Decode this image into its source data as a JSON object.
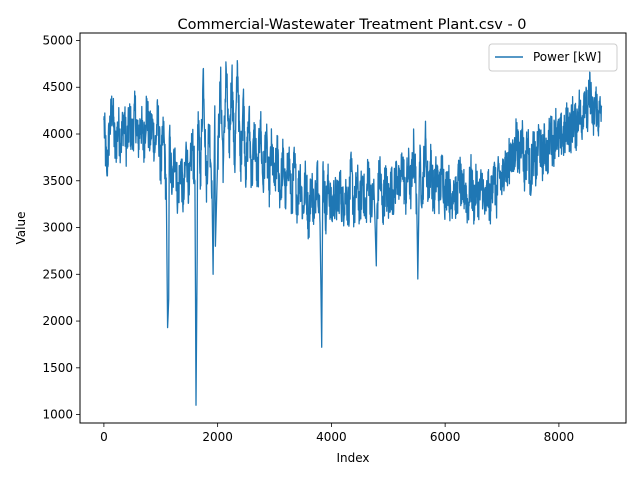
{
  "chart_data": {
    "type": "line",
    "title": "Commercial-Wastewater Treatment Plant.csv - 0",
    "xlabel": "Index",
    "ylabel": "Value",
    "xlim": [
      -420,
      9180
    ],
    "ylim": [
      910,
      5080
    ],
    "xticks": [
      0,
      2000,
      4000,
      6000,
      8000
    ],
    "yticks": [
      1000,
      1500,
      2000,
      2500,
      3000,
      3500,
      4000,
      4500,
      5000
    ],
    "grid": false,
    "legend_position": "top-right",
    "series": [
      {
        "name": "Power [kW]",
        "color": "#1f77b4",
        "x": [
          0,
          50,
          100,
          150,
          200,
          250,
          300,
          350,
          400,
          450,
          500,
          550,
          600,
          650,
          700,
          750,
          800,
          850,
          900,
          950,
          1000,
          1050,
          1100,
          1150,
          1200,
          1250,
          1300,
          1350,
          1400,
          1450,
          1500,
          1550,
          1600,
          1650,
          1700,
          1750,
          1800,
          1850,
          1900,
          1950,
          2000,
          2050,
          2100,
          2150,
          2200,
          2250,
          2300,
          2350,
          2400,
          2450,
          2500,
          2550,
          2600,
          2650,
          2700,
          2750,
          2800,
          2850,
          2900,
          2950,
          3000,
          3050,
          3100,
          3150,
          3200,
          3250,
          3300,
          3350,
          3400,
          3450,
          3500,
          3550,
          3600,
          3650,
          3700,
          3750,
          3800,
          3850,
          3900,
          3950,
          4000,
          4050,
          4100,
          4150,
          4200,
          4250,
          4300,
          4350,
          4400,
          4450,
          4500,
          4550,
          4600,
          4650,
          4700,
          4750,
          4800,
          4850,
          4900,
          4950,
          5000,
          5050,
          5100,
          5150,
          5200,
          5250,
          5300,
          5350,
          5400,
          5450,
          5500,
          5550,
          5600,
          5650,
          5700,
          5750,
          5800,
          5850,
          5900,
          5950,
          6000,
          6050,
          6100,
          6150,
          6200,
          6250,
          6300,
          6350,
          6400,
          6450,
          6500,
          6550,
          6600,
          6650,
          6700,
          6750,
          6800,
          6850,
          6900,
          6950,
          7000,
          7050,
          7100,
          7150,
          7200,
          7250,
          7300,
          7350,
          7400,
          7450,
          7500,
          7550,
          7600,
          7650,
          7700,
          7750,
          7800,
          7850,
          7900,
          7950,
          8000,
          8050,
          8100,
          8150,
          8200,
          8250,
          8300,
          8350,
          8400,
          8450,
          8500,
          8550,
          8600,
          8650,
          8700,
          8750
        ],
        "y": [
          4150,
          3600,
          4050,
          4300,
          3800,
          4100,
          3900,
          4200,
          3850,
          4150,
          3950,
          4250,
          3900,
          4150,
          3850,
          4300,
          3950,
          4100,
          3850,
          4200,
          3600,
          4050,
          3300,
          3950,
          3400,
          3850,
          3300,
          3700,
          3250,
          3850,
          3350,
          3950,
          3500,
          4100,
          3600,
          4700,
          3450,
          4100,
          3500,
          4300,
          3700,
          4550,
          3650,
          4700,
          3800,
          4650,
          3650,
          4750,
          3600,
          4400,
          3550,
          4200,
          3500,
          4050,
          3450,
          4150,
          3450,
          4000,
          3400,
          3850,
          3450,
          3800,
          3350,
          3750,
          3300,
          3800,
          3250,
          3700,
          3250,
          3600,
          3150,
          3550,
          3050,
          3500,
          3100,
          3700,
          3050,
          3650,
          3150,
          3500,
          3150,
          3350,
          3250,
          3450,
          3200,
          3400,
          3200,
          3600,
          3150,
          3500,
          3200,
          3550,
          3100,
          3650,
          3200,
          3400,
          3150,
          3650,
          3150,
          3500,
          3250,
          3450,
          3350,
          3600,
          3350,
          3750,
          3300,
          3650,
          3400,
          3850,
          3300,
          3700,
          3350,
          3950,
          3400,
          3700,
          3300,
          3600,
          3350,
          3650,
          3300,
          3550,
          3200,
          3500,
          3250,
          3600,
          3300,
          3450,
          3200,
          3550,
          3250,
          3450,
          3300,
          3500,
          3200,
          3400,
          3250,
          3650,
          3300,
          3600,
          3450,
          3750,
          3550,
          3850,
          3650,
          4000,
          3700,
          4050,
          3550,
          3950,
          3500,
          3850,
          3600,
          4000,
          3700,
          3900,
          3750,
          4050,
          3850,
          4100,
          3900,
          4000,
          3950,
          4150,
          4000,
          4200,
          4050,
          4300,
          4100,
          4450,
          4150,
          4500,
          4100,
          4350,
          4150,
          4300
        ],
        "spikes": [
          {
            "x": 1120,
            "y": 1930
          },
          {
            "x": 1140,
            "y": 2240
          },
          {
            "x": 1620,
            "y": 1100
          },
          {
            "x": 1640,
            "y": 2720
          },
          {
            "x": 1920,
            "y": 2500
          },
          {
            "x": 1960,
            "y": 2800
          },
          {
            "x": 3830,
            "y": 1720
          },
          {
            "x": 4790,
            "y": 2590
          },
          {
            "x": 5520,
            "y": 2450
          }
        ]
      }
    ]
  }
}
